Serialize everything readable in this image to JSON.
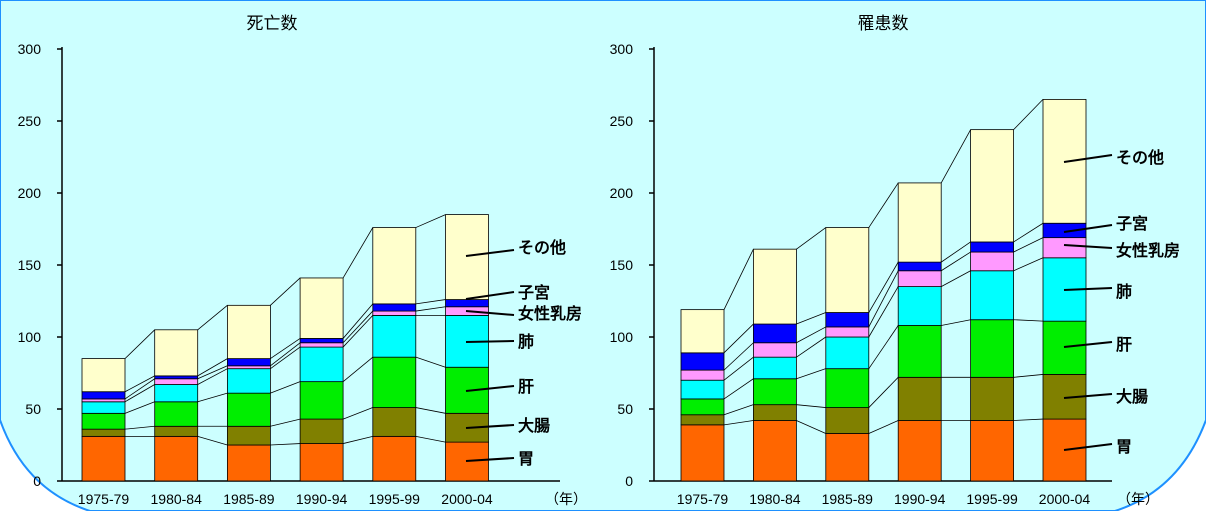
{
  "background_color": "#ccffff",
  "colors": {
    "stomach": "#ff6600",
    "colon": "#808000",
    "liver": "#00ee00",
    "lung": "#00ffff",
    "breast": "#ff99ff",
    "uterus": "#0000ff",
    "other": "#ffffcc"
  },
  "chart_data": [
    {
      "type": "bar",
      "stacked": true,
      "title": "死亡数",
      "xlabel": "（年）",
      "ylabel": "",
      "ylim": [
        0,
        300
      ],
      "yticks": [
        "0",
        "50",
        "100",
        "150",
        "200",
        "250",
        "300"
      ],
      "categories": [
        "1975-79",
        "1980-84",
        "1985-89",
        "1990-94",
        "1995-99",
        "2000-04"
      ],
      "series": [
        {
          "name": "胃",
          "key": "stomach",
          "values": [
            31,
            31,
            25,
            26,
            31,
            27
          ]
        },
        {
          "name": "大腸",
          "key": "colon",
          "values": [
            5,
            7,
            13,
            17,
            20,
            20
          ]
        },
        {
          "name": "肝",
          "key": "liver",
          "values": [
            11,
            17,
            23,
            26,
            35,
            32
          ]
        },
        {
          "name": "肺",
          "key": "lung",
          "values": [
            8,
            12,
            17,
            24,
            29,
            36
          ]
        },
        {
          "name": "女性乳房",
          "key": "breast",
          "values": [
            2,
            4,
            2,
            3,
            3,
            6
          ]
        },
        {
          "name": "子宮",
          "key": "uterus",
          "values": [
            5,
            2,
            5,
            3,
            5,
            5
          ]
        },
        {
          "name": "その他",
          "key": "other",
          "values": [
            23,
            32,
            37,
            42,
            53,
            59
          ]
        }
      ],
      "grid": false
    },
    {
      "type": "bar",
      "stacked": true,
      "title": "罹患数",
      "xlabel": "（年）",
      "ylabel": "",
      "ylim": [
        0,
        300
      ],
      "yticks": [
        "0",
        "50",
        "100",
        "150",
        "200",
        "250",
        "300"
      ],
      "categories": [
        "1975-79",
        "1980-84",
        "1985-89",
        "1990-94",
        "1995-99",
        "2000-04"
      ],
      "series": [
        {
          "name": "胃",
          "key": "stomach",
          "values": [
            39,
            42,
            33,
            42,
            42,
            43
          ]
        },
        {
          "name": "大腸",
          "key": "colon",
          "values": [
            7,
            11,
            18,
            30,
            30,
            31
          ]
        },
        {
          "name": "肝",
          "key": "liver",
          "values": [
            11,
            18,
            27,
            36,
            40,
            37
          ]
        },
        {
          "name": "肺",
          "key": "lung",
          "values": [
            13,
            15,
            22,
            27,
            34,
            44
          ]
        },
        {
          "name": "女性乳房",
          "key": "breast",
          "values": [
            7,
            10,
            7,
            11,
            13,
            14
          ]
        },
        {
          "name": "子宮",
          "key": "uterus",
          "values": [
            12,
            13,
            10,
            6,
            7,
            10
          ]
        },
        {
          "name": "その他",
          "key": "other",
          "values": [
            30,
            52,
            59,
            55,
            78,
            86
          ]
        }
      ],
      "grid": false
    }
  ]
}
